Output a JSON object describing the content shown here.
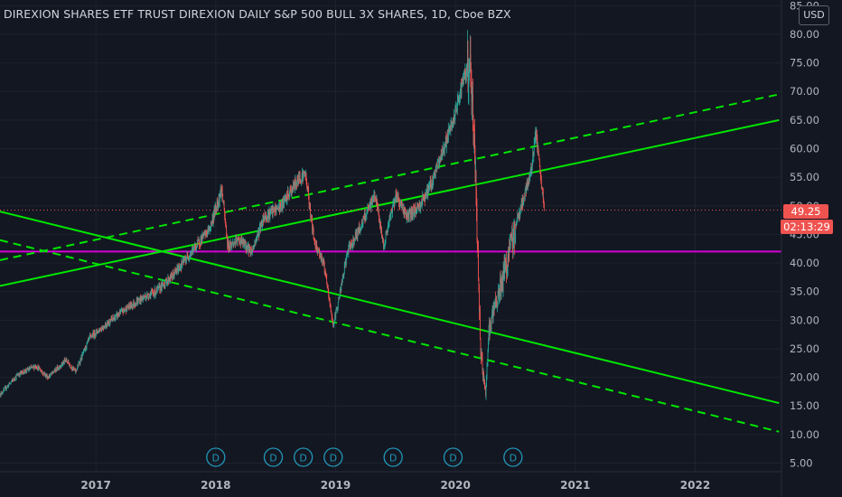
{
  "header": {
    "title": "DIREXION SHARES ETF TRUST DIREXION DAILY S&P 500 BULL 3X SHARES, 1D, Cboe BZX",
    "currency": "USD"
  },
  "price_axis": {
    "last_price": "49.25",
    "countdown": "02:13:29"
  },
  "colors": {
    "background": "#131722",
    "up": "#26a69a",
    "down": "#ef5350",
    "trendline": "#00e600",
    "support": "#d500d5",
    "dividend": "#2196b6"
  },
  "dividend_marker_label": "D",
  "chart_data": {
    "type": "candlestick",
    "title": "DIREXION SHARES ETF TRUST DIREXION DAILY S&P 500 BULL 3X SHARES, 1D, Cboe BZX",
    "y_ticks": [
      "5.00",
      "10.00",
      "15.00",
      "20.00",
      "25.00",
      "30.00",
      "35.00",
      "40.00",
      "45.00",
      "50.00",
      "55.00",
      "60.00",
      "65.00",
      "70.00",
      "75.00",
      "80.00",
      "85.00"
    ],
    "x_ticks": [
      "2017",
      "2018",
      "2019",
      "2020",
      "2021",
      "2022"
    ],
    "ylim": [
      3.5,
      86
    ],
    "xlim": [
      2016.2,
      2022.72
    ],
    "grid": true,
    "series": [
      {
        "values": [
          [
            2016.2,
            17
          ],
          [
            2016.35,
            20.5
          ],
          [
            2016.5,
            22
          ],
          [
            2016.6,
            20
          ],
          [
            2016.75,
            23
          ],
          [
            2016.83,
            21
          ],
          [
            2016.95,
            27
          ],
          [
            2017.1,
            29.5
          ],
          [
            2017.25,
            32
          ],
          [
            2017.4,
            34
          ],
          [
            2017.5,
            35
          ],
          [
            2017.65,
            38
          ],
          [
            2017.8,
            42
          ],
          [
            2017.95,
            46
          ],
          [
            2018.05,
            53
          ],
          [
            2018.1,
            43
          ],
          [
            2018.2,
            44
          ],
          [
            2018.3,
            42
          ],
          [
            2018.4,
            48
          ],
          [
            2018.55,
            50
          ],
          [
            2018.7,
            55
          ],
          [
            2018.75,
            55.5
          ],
          [
            2018.82,
            44
          ],
          [
            2018.9,
            40
          ],
          [
            2018.98,
            29
          ],
          [
            2019.03,
            34
          ],
          [
            2019.1,
            42
          ],
          [
            2019.2,
            46
          ],
          [
            2019.33,
            52
          ],
          [
            2019.4,
            43
          ],
          [
            2019.5,
            52
          ],
          [
            2019.6,
            48
          ],
          [
            2019.7,
            50
          ],
          [
            2019.8,
            54
          ],
          [
            2019.9,
            60
          ],
          [
            2020.0,
            66
          ],
          [
            2020.05,
            71
          ],
          [
            2020.12,
            75
          ],
          [
            2020.16,
            60
          ],
          [
            2020.21,
            25
          ],
          [
            2020.25,
            17
          ],
          [
            2020.28,
            28
          ],
          [
            2020.35,
            34
          ],
          [
            2020.43,
            40
          ],
          [
            2020.52,
            48
          ],
          [
            2020.58,
            52
          ],
          [
            2020.63,
            56
          ],
          [
            2020.67,
            63
          ],
          [
            2020.71,
            55
          ],
          [
            2020.74,
            49.25
          ]
        ]
      }
    ],
    "trendlines": [
      {
        "style": "solid",
        "points": [
          [
            2016.2,
            36
          ],
          [
            2022.7,
            65
          ]
        ]
      },
      {
        "style": "dashed",
        "points": [
          [
            2016.2,
            40.5
          ],
          [
            2022.7,
            69.5
          ]
        ]
      },
      {
        "style": "solid",
        "points": [
          [
            2016.2,
            49
          ],
          [
            2022.7,
            15.5
          ]
        ]
      },
      {
        "style": "dashed",
        "points": [
          [
            2016.2,
            44
          ],
          [
            2022.7,
            10.5
          ]
        ]
      }
    ],
    "support_level": 42,
    "dividends_x": [
      2018.0,
      2018.48,
      2018.73,
      2018.98,
      2019.48,
      2019.98,
      2020.48
    ],
    "xlabel": "",
    "ylabel": ""
  }
}
